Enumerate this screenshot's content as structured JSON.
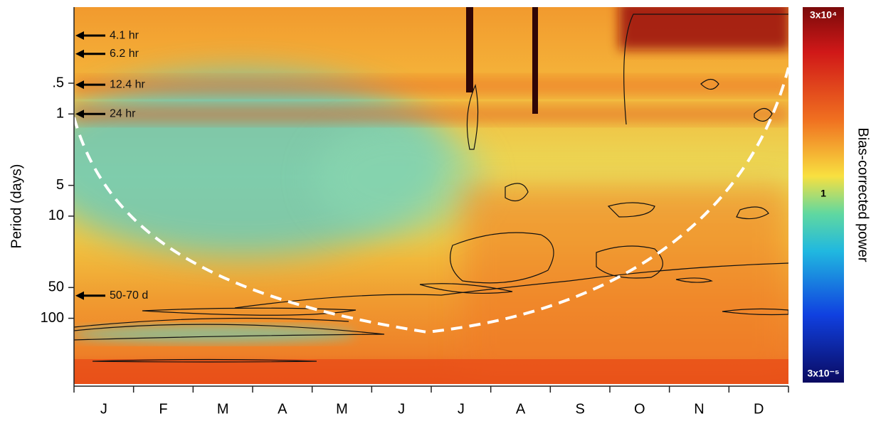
{
  "chart_data": {
    "type": "heatmap",
    "y_label": "Period (days)",
    "colorbar_label": "Bias-corrected power",
    "categories": [
      "J",
      "F",
      "M",
      "A",
      "M",
      "J",
      "J",
      "A",
      "S",
      "O",
      "N",
      "D"
    ],
    "log_y": true,
    "ylim": [
      0.09,
      440
    ],
    "yticks": [
      {
        "value": 0.5,
        "label": ".5"
      },
      1,
      5,
      10,
      50,
      100
    ],
    "annotations": [
      {
        "text": "4.1 hr",
        "period": 0.171
      },
      {
        "text": "6.2 hr",
        "period": 0.258
      },
      {
        "text": "12.4 hr",
        "period": 0.517
      },
      {
        "text": "24 hr",
        "period": 1
      },
      {
        "text": "50-70 d",
        "period": 60
      }
    ],
    "colorbar": {
      "log": true,
      "clim": [
        3e-05,
        30000
      ],
      "ticks": [
        {
          "value": 30000,
          "label": "3x10⁴"
        },
        1,
        {
          "value": 3e-05,
          "label": "3x10⁻⁵"
        }
      ]
    }
  }
}
